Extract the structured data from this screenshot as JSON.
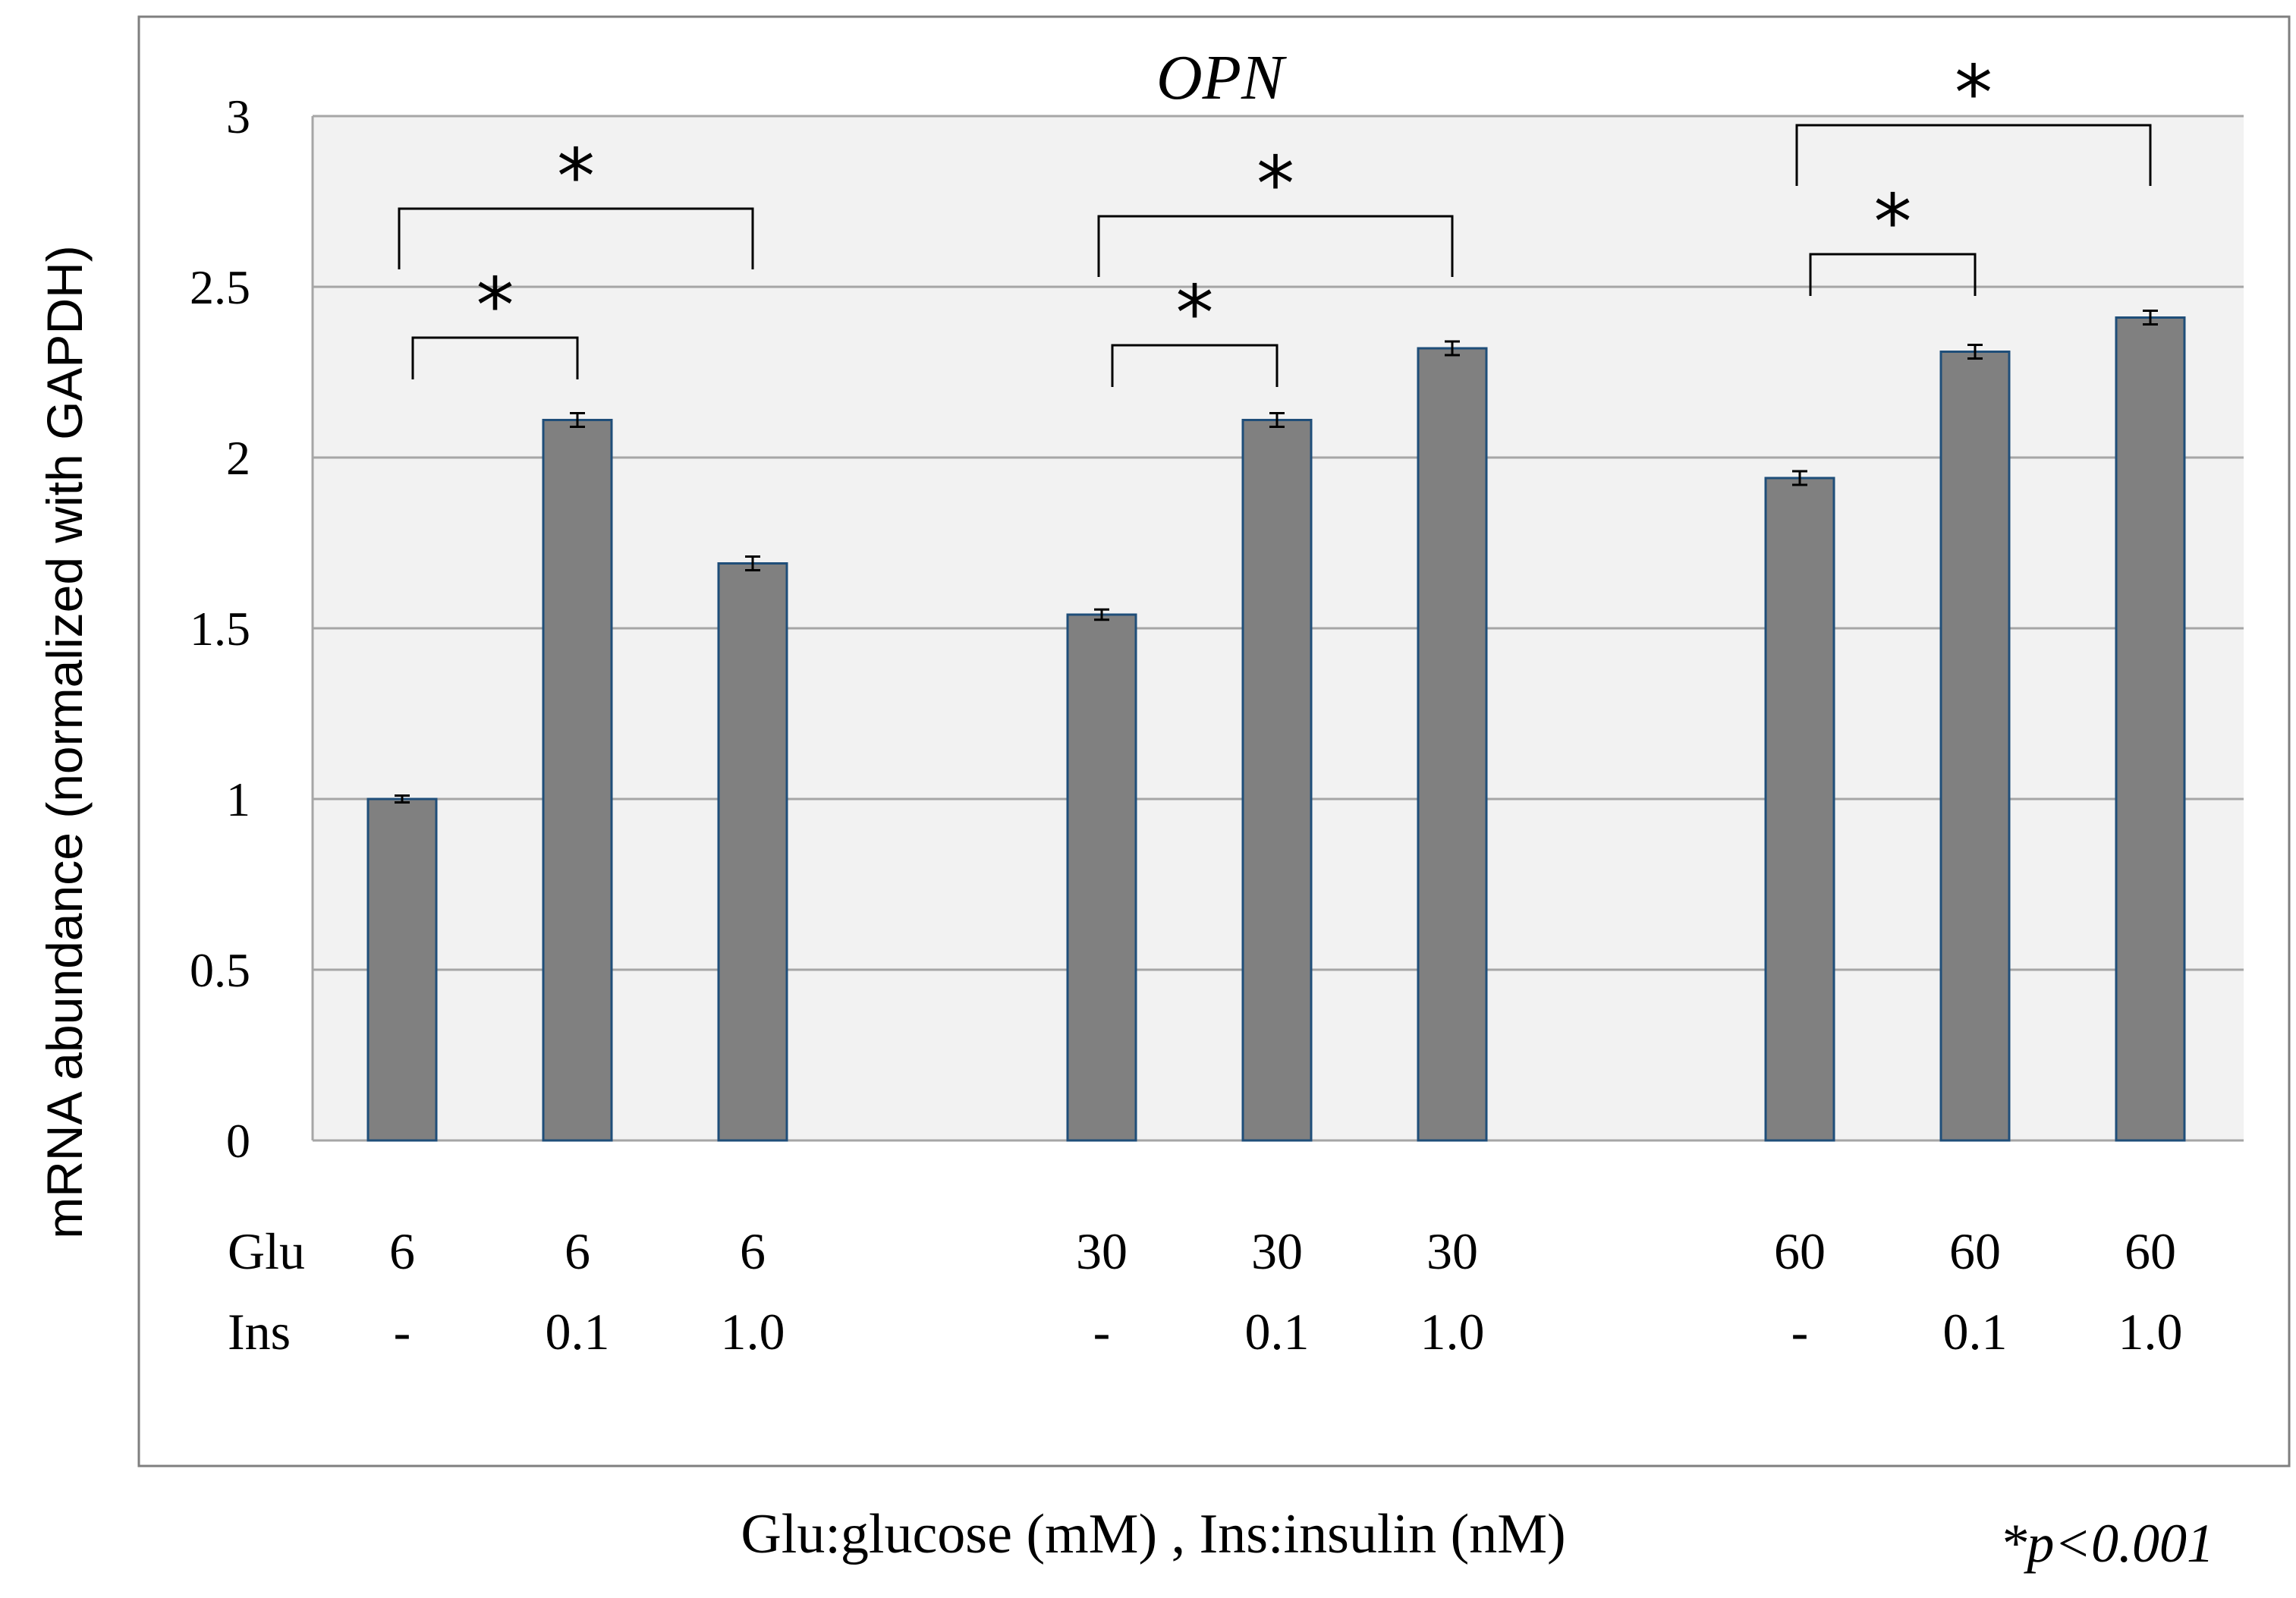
{
  "chart_data": {
    "type": "bar",
    "title": "OPN",
    "ylabel": "mRNA abundance (normalized with GAPDH)",
    "xlabel": "Glu:glucose (mM) ,  Ins:insulin (nM)",
    "footnote": "*p<0.001",
    "ylim": [
      0,
      3
    ],
    "yticks": [
      "0",
      "0.5",
      "1",
      "1.5",
      "2",
      "2.5",
      "3"
    ],
    "grid": true,
    "legend": "none",
    "row_labels": [
      "Glu",
      "Ins"
    ],
    "categories": [
      {
        "glu": "6",
        "ins": "-"
      },
      {
        "glu": "6",
        "ins": "0.1"
      },
      {
        "glu": "6",
        "ins": "1.0"
      },
      {
        "glu": "30",
        "ins": "-"
      },
      {
        "glu": "30",
        "ins": "0.1"
      },
      {
        "glu": "30",
        "ins": "1.0"
      },
      {
        "glu": "60",
        "ins": "-"
      },
      {
        "glu": "60",
        "ins": "0.1"
      },
      {
        "glu": "60",
        "ins": "1.0"
      }
    ],
    "values": [
      1.0,
      2.11,
      1.69,
      1.54,
      2.11,
      2.32,
      1.94,
      2.31,
      2.41
    ],
    "errors": [
      0.01,
      0.02,
      0.02,
      0.015,
      0.02,
      0.02,
      0.02,
      0.02,
      0.02
    ],
    "significance": [
      {
        "from": 0,
        "to": 1,
        "label": "*"
      },
      {
        "from": 0,
        "to": 2,
        "label": "*"
      },
      {
        "from": 3,
        "to": 4,
        "label": "*"
      },
      {
        "from": 3,
        "to": 5,
        "label": "*"
      },
      {
        "from": 6,
        "to": 7,
        "label": "*"
      },
      {
        "from": 6,
        "to": 8,
        "label": "*"
      }
    ],
    "colors": {
      "bar_fill": "#808080",
      "bar_stroke": "#1f4e79",
      "plot_bg": "#f2f2f2",
      "grid": "#a6a6a6",
      "frame": "#7f7f7f"
    }
  }
}
